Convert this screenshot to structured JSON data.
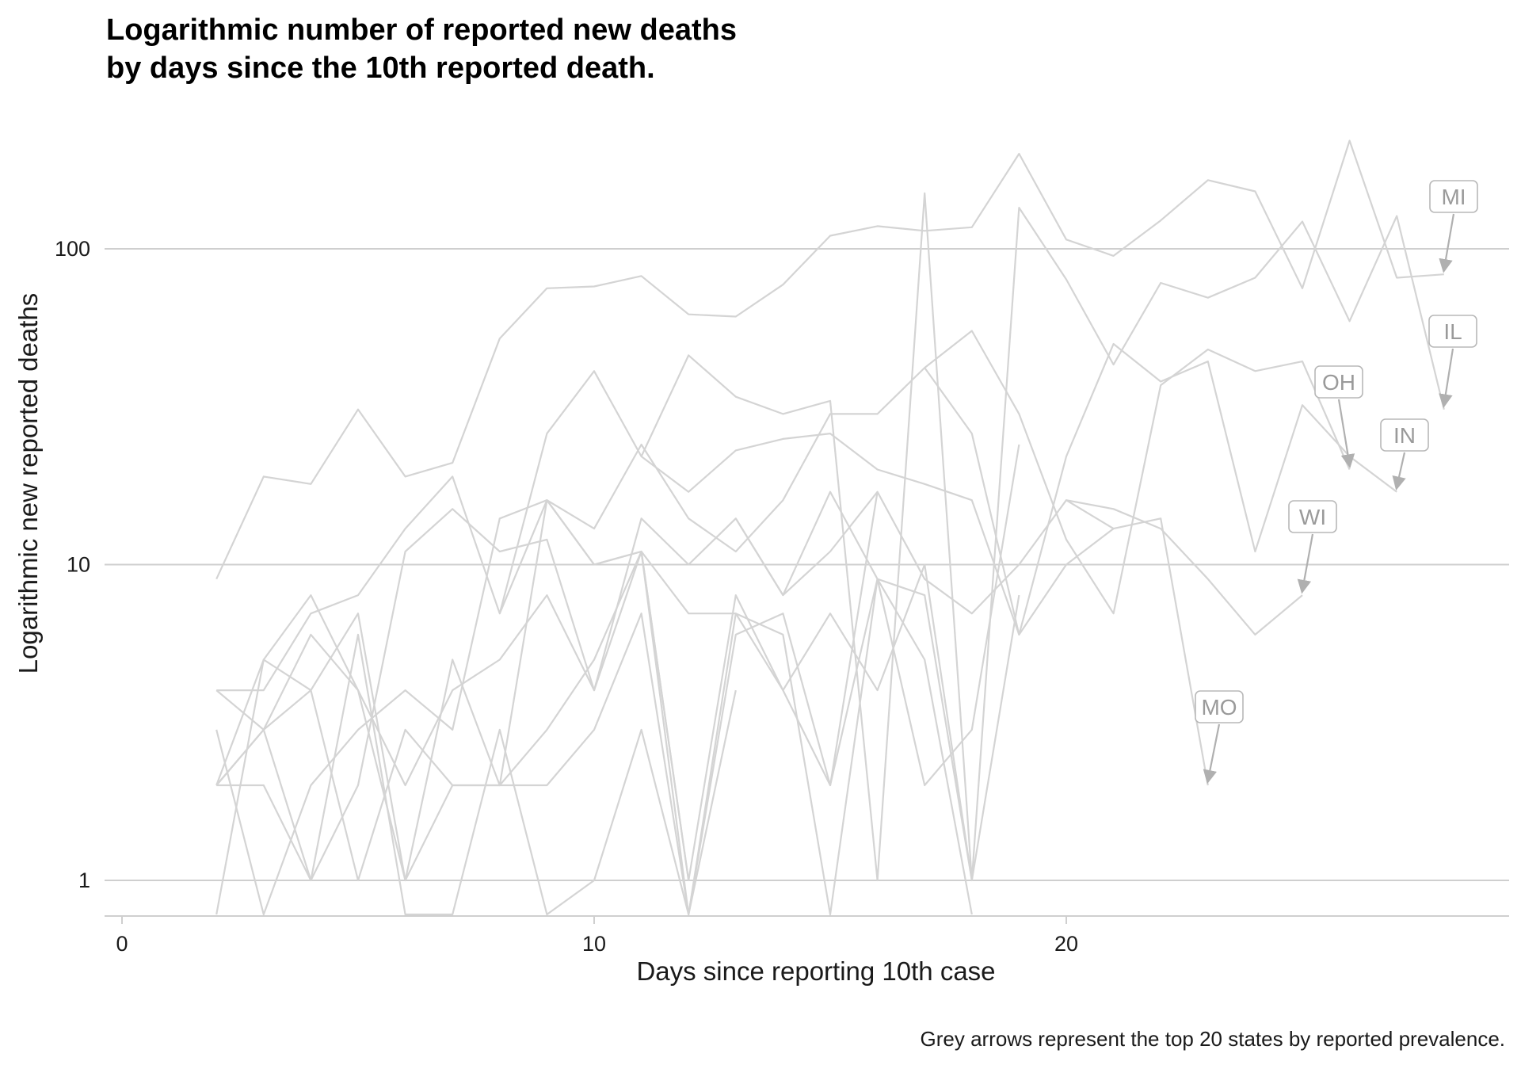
{
  "chart_data": {
    "type": "line",
    "title": "Logarithmic number of reported new deaths\nby days since the 10th reported death.",
    "xlabel": "Days since reporting 10th case",
    "ylabel": "Logarithmic new reported deaths",
    "caption": "Grey arrows represent the top 20 states by reported prevalence.",
    "y_scale": "log",
    "xlim": [
      0,
      29
    ],
    "ylim": [
      0.78,
      300
    ],
    "x_ticks": [
      0,
      10,
      20
    ],
    "y_ticks": [
      1,
      10,
      100
    ],
    "grid": "horizontal major lines only",
    "line_color": "#d4d4d4",
    "arrow_color": "#b0b0b0",
    "series": [
      {
        "name": "MI",
        "x": [
          2,
          3,
          4,
          5,
          6,
          7,
          8,
          9,
          10,
          11,
          12,
          13,
          14,
          15,
          16,
          17,
          18,
          19,
          20,
          21,
          22,
          23,
          24,
          25,
          26,
          27,
          28
        ],
        "y": [
          9,
          19,
          18,
          31,
          19,
          21,
          52,
          75,
          76,
          82,
          62,
          61,
          77,
          110,
          118,
          114,
          117,
          200,
          107,
          95,
          123,
          165,
          152,
          75,
          220,
          81,
          83
        ]
      },
      {
        "name": "IL",
        "x": [
          11,
          12,
          13,
          14,
          15,
          16,
          17,
          18,
          19,
          20,
          21,
          22,
          23,
          24,
          25,
          26,
          27,
          28
        ],
        "y": [
          22,
          46,
          34,
          30,
          33,
          1,
          150,
          1,
          135,
          80,
          43,
          78,
          70,
          81,
          122,
          59,
          127,
          31
        ]
      },
      {
        "name": "OH",
        "x": [
          17,
          18,
          19,
          20,
          21,
          22,
          23,
          24,
          25,
          26
        ],
        "y": [
          42,
          55,
          30,
          12,
          7,
          37,
          48,
          41,
          44,
          20
        ]
      },
      {
        "name": "IN",
        "x": [
          8,
          9,
          10,
          11,
          12,
          13,
          14,
          15,
          16,
          17,
          18,
          19,
          20,
          21,
          22,
          23,
          24,
          25,
          26,
          27
        ],
        "y": [
          7,
          26,
          41,
          22,
          17,
          23,
          25,
          26,
          20,
          18,
          16,
          6,
          22,
          50,
          38,
          44,
          11,
          32,
          22,
          17
        ]
      },
      {
        "name": "WI",
        "x": [
          20,
          21,
          22,
          23,
          24,
          25
        ],
        "y": [
          16,
          15,
          13,
          9,
          6,
          8
        ]
      },
      {
        "name": "MO",
        "x": [
          13,
          14,
          15,
          16,
          17,
          18,
          19,
          20,
          21,
          22,
          23
        ],
        "y": [
          14,
          8,
          11,
          17,
          9,
          7,
          10,
          16,
          13,
          14,
          2
        ]
      },
      {
        "x": [
          2,
          3,
          4,
          5,
          6,
          7,
          8,
          9,
          10,
          11,
          12,
          13,
          14,
          15,
          16,
          17,
          18,
          19,
          20,
          21
        ],
        "y": [
          4,
          4,
          7,
          8,
          13,
          19,
          7,
          16,
          13,
          24,
          14,
          11,
          16,
          30,
          30,
          42,
          26,
          6,
          10,
          13
        ]
      },
      {
        "x": [
          2,
          3,
          4,
          5,
          6,
          7,
          8,
          9,
          10,
          11,
          12,
          13,
          14,
          15,
          16,
          17,
          18
        ],
        "y": [
          2,
          3,
          6,
          4,
          2,
          4,
          5,
          8,
          4,
          14,
          10,
          14,
          8,
          17,
          9,
          8,
          1
        ]
      },
      {
        "x": [
          2,
          3,
          4,
          5,
          6,
          7,
          8,
          9,
          10,
          11,
          12,
          13,
          14,
          15,
          16,
          17,
          18,
          19
        ],
        "y": [
          4,
          3,
          1,
          2,
          11,
          15,
          11,
          12,
          4,
          11,
          7,
          7,
          4,
          7,
          4,
          10,
          1,
          8
        ]
      },
      {
        "x": [
          2,
          3,
          4,
          5,
          6,
          7,
          8,
          9,
          10,
          11,
          12,
          13,
          14,
          15,
          16,
          17,
          18,
          19
        ],
        "y": [
          2,
          5,
          8,
          4,
          1,
          5,
          2,
          16,
          10,
          11,
          1,
          8,
          4,
          2,
          9,
          2,
          3,
          24
        ]
      },
      {
        "x": [
          2,
          3,
          4,
          5,
          6,
          7,
          8,
          9,
          10,
          11,
          12,
          13
        ],
        "y": [
          3,
          0.78,
          2,
          3,
          4,
          3,
          14,
          16,
          10,
          11,
          0.78,
          4
        ]
      },
      {
        "x": [
          2,
          3,
          4,
          5,
          6,
          7,
          8,
          9,
          10,
          11,
          12,
          13,
          14,
          15,
          16
        ],
        "y": [
          0.78,
          5,
          4,
          7,
          1,
          2,
          2,
          2,
          3,
          7,
          0.78,
          6,
          7,
          2,
          17
        ]
      },
      {
        "x": [
          2,
          3,
          4,
          5,
          6,
          7,
          8,
          9,
          10,
          11,
          12,
          13,
          14,
          15,
          16,
          17,
          18
        ],
        "y": [
          2,
          2,
          1,
          6,
          0.78,
          0.78,
          3,
          0.78,
          1,
          3,
          0.78,
          7,
          6,
          0.78,
          9,
          5,
          0.78
        ]
      },
      {
        "x": [
          2,
          3,
          4,
          5,
          6,
          7,
          8,
          9,
          10,
          11,
          12
        ],
        "y": [
          2,
          3,
          4,
          1,
          3,
          2,
          2,
          3,
          5,
          11,
          1
        ]
      }
    ]
  }
}
